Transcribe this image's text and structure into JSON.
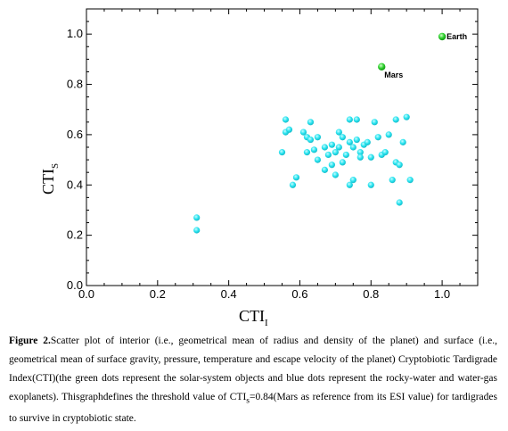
{
  "chart_data": {
    "type": "scatter",
    "xlabel": "CTI",
    "xlabel_sub": "I",
    "ylabel": "CTI",
    "ylabel_sub": "S",
    "xlim": [
      0.0,
      1.1
    ],
    "ylim": [
      0.0,
      1.1
    ],
    "xticks": [
      0.0,
      0.2,
      0.4,
      0.6,
      0.8,
      1.0
    ],
    "xtick_labels": [
      "0.0",
      "0.2",
      "0.4",
      "0.6",
      "0.8",
      "1.0"
    ],
    "yticks": [
      0.0,
      0.2,
      0.4,
      0.6,
      0.8,
      1.0
    ],
    "ytick_labels": [
      "0.0",
      "0.2",
      "0.4",
      "0.6",
      "0.8",
      "1.0"
    ],
    "grid": false,
    "series": [
      {
        "color": "#2be5f0",
        "points": [
          [
            0.31,
            0.27
          ],
          [
            0.31,
            0.22
          ],
          [
            0.55,
            0.53
          ],
          [
            0.56,
            0.66
          ],
          [
            0.56,
            0.61
          ],
          [
            0.57,
            0.62
          ],
          [
            0.58,
            0.4
          ],
          [
            0.59,
            0.43
          ],
          [
            0.61,
            0.61
          ],
          [
            0.62,
            0.59
          ],
          [
            0.62,
            0.53
          ],
          [
            0.63,
            0.65
          ],
          [
            0.63,
            0.58
          ],
          [
            0.64,
            0.54
          ],
          [
            0.65,
            0.59
          ],
          [
            0.65,
            0.5
          ],
          [
            0.67,
            0.46
          ],
          [
            0.67,
            0.55
          ],
          [
            0.68,
            0.52
          ],
          [
            0.69,
            0.48
          ],
          [
            0.69,
            0.56
          ],
          [
            0.7,
            0.44
          ],
          [
            0.7,
            0.53
          ],
          [
            0.71,
            0.61
          ],
          [
            0.71,
            0.55
          ],
          [
            0.72,
            0.49
          ],
          [
            0.72,
            0.59
          ],
          [
            0.73,
            0.52
          ],
          [
            0.74,
            0.66
          ],
          [
            0.74,
            0.4
          ],
          [
            0.74,
            0.57
          ],
          [
            0.75,
            0.42
          ],
          [
            0.75,
            0.55
          ],
          [
            0.76,
            0.58
          ],
          [
            0.76,
            0.66
          ],
          [
            0.77,
            0.53
          ],
          [
            0.77,
            0.51
          ],
          [
            0.78,
            0.56
          ],
          [
            0.79,
            0.57
          ],
          [
            0.8,
            0.51
          ],
          [
            0.8,
            0.4
          ],
          [
            0.81,
            0.65
          ],
          [
            0.82,
            0.59
          ],
          [
            0.83,
            0.52
          ],
          [
            0.84,
            0.53
          ],
          [
            0.85,
            0.6
          ],
          [
            0.86,
            0.42
          ],
          [
            0.87,
            0.66
          ],
          [
            0.87,
            0.49
          ],
          [
            0.88,
            0.48
          ],
          [
            0.88,
            0.33
          ],
          [
            0.89,
            0.57
          ],
          [
            0.9,
            0.67
          ],
          [
            0.91,
            0.42
          ]
        ]
      },
      {
        "color": "#2fd12f",
        "points": [
          {
            "x": 1.0,
            "y": 0.99,
            "label": "Earth"
          },
          {
            "x": 0.83,
            "y": 0.87,
            "label": "Mars"
          }
        ]
      }
    ]
  },
  "caption": {
    "figure_label": "Figure 2.",
    "text_part1": "Scatter plot of interior (i.e., geometrical mean of radius and density of the planet) and surface (i.e., geometrical mean of surface gravity, pressure, temperature and escape velocity of the planet) Cryptobiotic Tardigrade Index(CTI)(the green dots represent the solar-system objects and blue dots represent the rocky-water and water-gas exoplanets). Thisgraphdefines the threshold value of CTI",
    "text_sub": "s",
    "text_part2": "=0.84(Mars as reference from its ESI value) for tardigrades to survive in cryptobiotic state."
  }
}
